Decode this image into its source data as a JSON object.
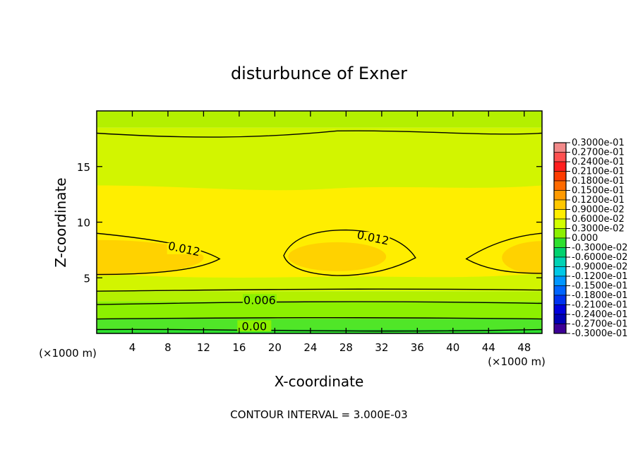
{
  "chart_data": {
    "type": "heatmap",
    "title": "disturbunce of Exner",
    "xlabel": "X-coordinate",
    "ylabel": "Z-coordinate",
    "x_unit": "(×1000 m)",
    "y_unit": "(×1000 m)",
    "xlim": [
      0,
      50
    ],
    "ylim": [
      0,
      20
    ],
    "x_ticks": [
      4,
      8,
      12,
      16,
      20,
      24,
      28,
      32,
      36,
      40,
      44,
      48
    ],
    "y_ticks": [
      5,
      10,
      15
    ],
    "contour_interval_text": "CONTOUR INTERVAL = 3.000E-03",
    "contour_labels": [
      {
        "text": "0.012",
        "x": 9.8,
        "z": 7.5
      },
      {
        "text": "0.012",
        "x": 31.0,
        "z": 8.5
      },
      {
        "text": "0.006",
        "x": 18.3,
        "z": 2.9
      },
      {
        "text": "0.00",
        "x": 17.7,
        "z": 0.55
      }
    ],
    "legend": {
      "levels": [
        "0.3000e-01",
        "0.2700e-01",
        "0.2400e-01",
        "0.2100e-01",
        "0.1800e-01",
        "0.1500e-01",
        "0.1200e-01",
        "0.9000e-02",
        "0.6000e-02",
        "0.3000e-02",
        "0.000",
        "-0.3000e-02",
        "-0.6000e-02",
        "-0.9000e-02",
        "-0.1200e-01",
        "-0.1500e-01",
        "-0.1800e-01",
        "-0.2100e-01",
        "-0.2400e-01",
        "-0.2700e-01",
        "-0.3000e-01"
      ],
      "colors": [
        "#f28a8a",
        "#ff5050",
        "#ff1e1e",
        "#ff3c00",
        "#ff6a00",
        "#ff9a00",
        "#ffc800",
        "#ffee00",
        "#d2ff00",
        "#8cf000",
        "#2ee02e",
        "#00d26e",
        "#00d2b4",
        "#00c8e6",
        "#0096ff",
        "#0064ff",
        "#0032f0",
        "#0000dc",
        "#0000b4",
        "#3c0096"
      ]
    },
    "field_colors": {
      "neg": "#2ee02e",
      "c000": "#50e628",
      "c003": "#8cf000",
      "c006": "#b4f000",
      "c009": "#d2f500",
      "c012": "#ffee00",
      "c015": "#ffd200"
    }
  }
}
